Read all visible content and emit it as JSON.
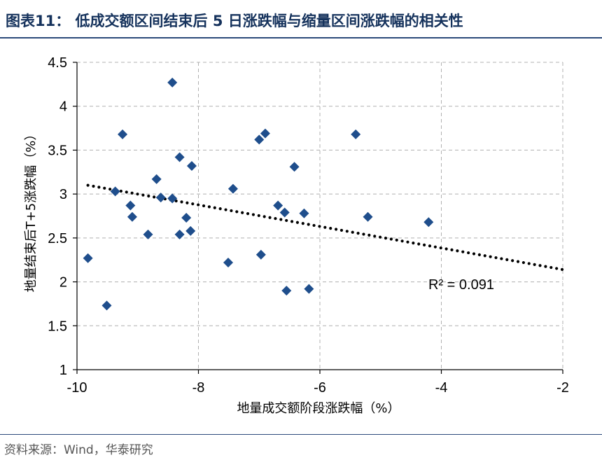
{
  "title": "图表11：  低成交额区间结束后 5 日涨跌幅与缩量区间涨跌幅的相关性",
  "source": "资料来源：Wind，华泰研究",
  "colors": {
    "title": "#15325c",
    "marker": "#1f4e8c",
    "trendline": "#000000",
    "grid": "#b0b0b0",
    "rule": "#2c4a7a"
  },
  "chart_data": {
    "type": "scatter",
    "xlabel": "地量成交额阶段涨跌幅（%）",
    "ylabel": "地量结束后T+5涨跌幅（%）",
    "xlim": [
      -10,
      -2
    ],
    "ylim": [
      1,
      4.5
    ],
    "x_ticks": [
      "-10",
      "-8",
      "-6",
      "-4",
      "-2"
    ],
    "y_ticks": [
      "1",
      "1.5",
      "2",
      "2.5",
      "3",
      "3.5",
      "4",
      "4.5"
    ],
    "grid": "dashed, both axes",
    "marker": "diamond",
    "x": [
      -9.82,
      -9.51,
      -9.37,
      -9.25,
      -9.12,
      -9.09,
      -8.83,
      -8.69,
      -8.62,
      -8.43,
      -8.43,
      -8.31,
      -8.31,
      -8.2,
      -8.13,
      -8.11,
      -7.51,
      -7.43,
      -7.0,
      -6.97,
      -6.9,
      -6.69,
      -6.58,
      -6.55,
      -6.42,
      -6.26,
      -6.18,
      -5.41,
      -5.21,
      -4.21
    ],
    "y": [
      2.27,
      1.73,
      3.03,
      3.68,
      2.87,
      2.74,
      2.54,
      3.17,
      2.96,
      4.27,
      2.95,
      3.42,
      2.54,
      2.73,
      2.58,
      3.32,
      2.22,
      3.06,
      3.62,
      2.31,
      3.69,
      2.87,
      2.79,
      1.9,
      3.31,
      2.78,
      1.92,
      3.68,
      2.74,
      2.68
    ],
    "trendline": {
      "type": "linear",
      "x_range": [
        -9.82,
        -2
      ],
      "y_range": [
        3.1,
        2.14
      ],
      "style": "dotted",
      "r_squared_label": "R² = 0.091"
    }
  }
}
